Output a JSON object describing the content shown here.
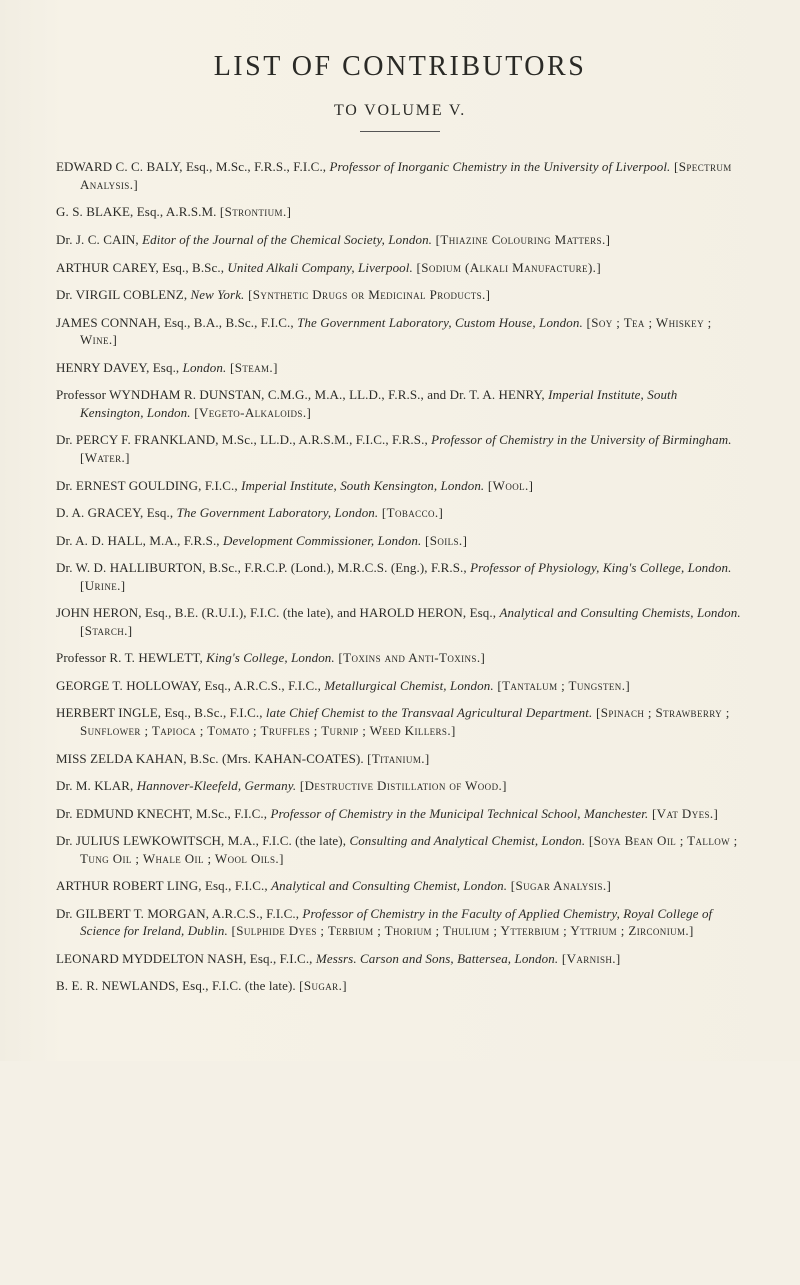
{
  "header": {
    "title": "LIST OF CONTRIBUTORS",
    "subtitle": "TO VOLUME V."
  },
  "entries": [
    {
      "name": "EDWARD C. C. BALY, Esq., M.Sc., F.R.S., F.I.C., ",
      "role_it": "Professor of Inorganic Chemistry in the University of Liverpool.",
      "topics": " [Spectrum Analysis.]"
    },
    {
      "name": "G. S. BLAKE, Esq., A.R.S.M. ",
      "role_it": "",
      "topics": "[Strontium.]"
    },
    {
      "name": "Dr. J. C. CAIN, ",
      "role_it": "Editor of the Journal of the Chemical Society, London.",
      "topics": " [Thiazine Colouring Matters.]"
    },
    {
      "name": "ARTHUR CAREY, Esq., B.Sc., ",
      "role_it": "United Alkali Company, Liverpool.",
      "topics": " [Sodium (Alkali Manufacture).]"
    },
    {
      "name": "Dr. VIRGIL COBLENZ, ",
      "role_it": "New York.",
      "topics": " [Synthetic Drugs or Medicinal Products.]"
    },
    {
      "name": "JAMES CONNAH, Esq., B.A., B.Sc., F.I.C., ",
      "role_it": "The Government Laboratory, Custom House, London.",
      "topics": " [Soy ; Tea ; Whiskey ; Wine.]"
    },
    {
      "name": "HENRY DAVEY, Esq., ",
      "role_it": "London.",
      "topics": " [Steam.]"
    },
    {
      "name": "Professor WYNDHAM R. DUNSTAN, C.M.G., M.A., LL.D., F.R.S., and Dr. T. A. HENRY, ",
      "role_it": "Imperial Institute, South Kensington, London.",
      "topics": " [Vegeto-Alkaloids.]"
    },
    {
      "name": "Dr. PERCY F. FRANKLAND, M.Sc., LL.D., A.R.S.M., F.I.C., F.R.S., ",
      "role_it": "Professor of Chemistry in the University of Birmingham.",
      "topics": " [Water.]"
    },
    {
      "name": "Dr. ERNEST GOULDING, F.I.C., ",
      "role_it": "Imperial Institute, South Kensington, London.",
      "topics": " [Wool.]"
    },
    {
      "name": "D. A. GRACEY, Esq., ",
      "role_it": "The Government Laboratory, London.",
      "topics": " [Tobacco.]"
    },
    {
      "name": "Dr. A. D. HALL, M.A., F.R.S., ",
      "role_it": "Development Commissioner, London.",
      "topics": " [Soils.]"
    },
    {
      "name": "Dr. W. D. HALLIBURTON, B.Sc., F.R.C.P. (Lond.), M.R.C.S. (Eng.), F.R.S., ",
      "role_it": "Professor of Physiology, King's College, London.",
      "topics": " [Urine.]"
    },
    {
      "name": "JOHN HERON, Esq., B.E. (R.U.I.), F.I.C. (the late), and HAROLD HERON, Esq., ",
      "role_it": "Analytical and Consulting Chemists, London.",
      "topics": " [Starch.]"
    },
    {
      "name": "Professor R. T. HEWLETT, ",
      "role_it": "King's College, London.",
      "topics": " [Toxins and Anti-Toxins.]"
    },
    {
      "name": "GEORGE T. HOLLOWAY, Esq., A.R.C.S., F.I.C., ",
      "role_it": "Metallurgical Chemist, London.",
      "topics": " [Tantalum ; Tungsten.]"
    },
    {
      "name": "HERBERT INGLE, Esq., B.Sc., F.I.C., ",
      "role_it": "late Chief Chemist to the Transvaal Agricultural Department.",
      "topics": " [Spinach ; Strawberry ; Sunflower ; Tapioca ; Tomato ; Truffles ; Turnip ; Weed Killers.]"
    },
    {
      "name": "MISS ZELDA KAHAN, B.Sc. (Mrs. KAHAN-COATES). ",
      "role_it": "",
      "topics": "[Titanium.]"
    },
    {
      "name": "Dr. M. KLAR, ",
      "role_it": "Hannover-Kleefeld, Germany.",
      "topics": " [Destructive Distillation of Wood.]"
    },
    {
      "name": "Dr. EDMUND KNECHT, M.Sc., F.I.C., ",
      "role_it": "Professor of Chemistry in the Municipal Technical School, Manchester.",
      "topics": " [Vat Dyes.]"
    },
    {
      "name": "Dr. JULIUS LEWKOWITSCH, M.A., F.I.C. (the late), ",
      "role_it": "Consulting and Analytical Chemist, London.",
      "topics": " [Soya Bean Oil ; Tallow ; Tung Oil ; Whale Oil ; Wool Oils.]"
    },
    {
      "name": "ARTHUR ROBERT LING, Esq., F.I.C., ",
      "role_it": "Analytical and Consulting Chemist, London.",
      "topics": " [Sugar Analysis.]"
    },
    {
      "name": "Dr. GILBERT T. MORGAN, A.R.C.S., F.I.C., ",
      "role_it": "Professor of Chemistry in the Faculty of Applied Chemistry, Royal College of Science for Ireland, Dublin.",
      "topics": " [Sulphide Dyes ; Terbium ; Thorium ; Thulium ; Ytterbium ; Yttrium ; Zirconium.]"
    },
    {
      "name": "LEONARD MYDDELTON NASH, Esq., F.I.C., ",
      "role_it": "Messrs. Carson and Sons, Battersea, London.",
      "topics": " [Varnish.]"
    },
    {
      "name": "B. E. R. NEWLANDS, Esq., F.I.C. (the late). ",
      "role_it": "",
      "topics": "[Sugar.]"
    }
  ]
}
